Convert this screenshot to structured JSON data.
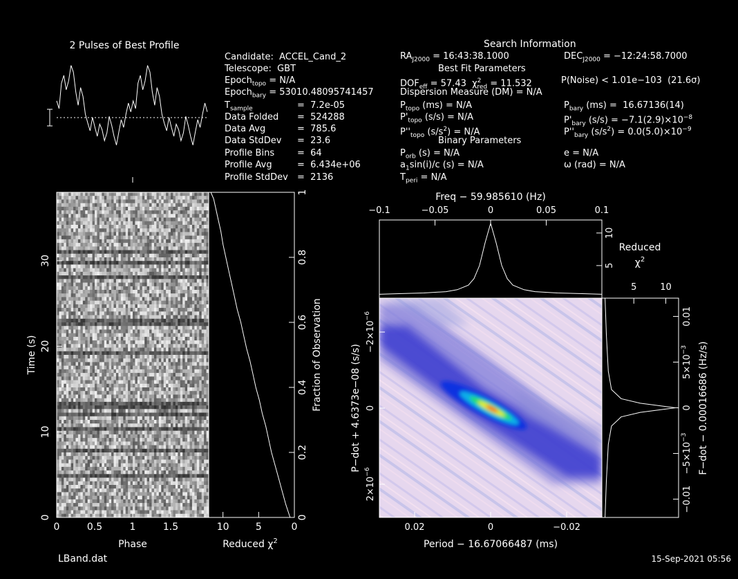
{
  "footer": {
    "file": "LBand.dat",
    "date": "15-Sep-2021 05:56"
  },
  "profile_panel": {
    "title": "2 Pulses of Best Profile"
  },
  "candidate_info": {
    "candidate": "Candidate:  ACCEL_Cand_2",
    "telescope": "Telescope:  GBT",
    "epoch_topo": "Epoch",
    "epoch_topo_sub": "topo",
    "epoch_topo_val": " = N/A",
    "epoch_bary": "Epoch",
    "epoch_bary_sub": "bary",
    "epoch_bary_val": " = 53010.48095741457",
    "tsample_label": "T",
    "tsample_sub": "sample",
    "tsample_val": "=  7.2e-05",
    "data_folded_label": "Data Folded",
    "data_folded_val": "=  524288",
    "data_avg_label": "Data Avg",
    "data_avg_val": "=  785.6",
    "data_std_label": "Data StdDev",
    "data_std_val": "=  23.6",
    "profile_bins_label": "Profile Bins",
    "profile_bins_val": "=  64",
    "profile_avg_label": "Profile Avg",
    "profile_avg_val": "=  6.434e+06",
    "profile_std_label": "Profile StdDev",
    "profile_std_val": "=  2136"
  },
  "search_info": {
    "title": "Search Information",
    "ra": "RA",
    "ra_sub": "J2000",
    "ra_val": " = 16:43:38.1000",
    "dec": "DEC",
    "dec_sub": "J2000",
    "dec_val": " = −12:24:58.7000",
    "best_fit": "Best Fit Parameters",
    "dof": "DOF",
    "dof_sub": "eff",
    "dof_val": " = 57.43  χ",
    "chi_sup": "2",
    "chi_sub": "red",
    "chi_val": " = 11.532",
    "pnoise": "P(Noise) < 1.01e−103  (21.6σ)",
    "dm": "Dispersion Measure (DM) = N/A",
    "ptopo": "P",
    "ptopo_sub": "topo",
    "ptopo_val": " (ms) = N/A",
    "pbary": "P",
    "pbary_sub": "bary",
    "pbary_val": " (ms) =  16.67136(14)",
    "pdtopo": "P'",
    "pdtopo_sub": "topo",
    "pdtopo_val": " (s/s) = N/A",
    "pdbary": "P'",
    "pdbary_sub": "bary",
    "pdbary_val": " (s/s) = −7.1(2.9)×10",
    "pdbary_exp": "−8",
    "pddtopo": "P''",
    "pddtopo_sub": "topo",
    "pddtopo_val": " (s/s",
    "pddtopo_sup": "2",
    "pddtopo_val2": ") = N/A",
    "pddbary": "P''",
    "pddbary_sub": "bary",
    "pddbary_val": " (s/s",
    "pddbary_sup": "2",
    "pddbary_val2": ") = 0.0(5.0)×10",
    "pddbary_exp": "−9",
    "binary": "Binary Parameters",
    "porb": "P",
    "porb_sub": "orb",
    "porb_val": " (s) = N/A",
    "ecc": "e = N/A",
    "asini": "a",
    "asini_sub": "1",
    "asini_val": "sin(i)/c (s) = N/A",
    "omega": "ω (rad) = N/A",
    "tperi": "T",
    "tperi_sub": "peri",
    "tperi_val": " = N/A"
  },
  "axes": {
    "phase_label": "Phase",
    "time_label": "Time (s)",
    "redchi_label": "Reduced χ",
    "redchi_sup": "2",
    "fraction_label": "Fraction of Observation",
    "freq_label": "Freq − 59.985610 (Hz)",
    "period_label": "Period − 16.67066487 (ms)",
    "pdot_label": "P−dot + 4.6373e−08 (s/s)",
    "fdot_label": "F−dot − 0.00016686 (Hz/s)",
    "reduced_label": "Reduced",
    "chi2_label": "χ",
    "chi2_sup": "2",
    "phase_ticks": [
      "0",
      "0.5",
      "1",
      "1.5"
    ],
    "time_ticks": [
      "0",
      "10",
      "20",
      "30"
    ],
    "redchi_ticks": [
      "10",
      "5",
      "0"
    ],
    "fraction_ticks": [
      "0",
      "0.2",
      "0.4",
      "0.6",
      "0.8",
      "1"
    ],
    "freq_ticks": [
      "−0.1",
      "−0.05",
      "0",
      "0.05",
      "0.1"
    ],
    "period_ticks": [
      "0.02",
      "0",
      "−0.02"
    ],
    "pdot_ticks": [
      "2×10",
      "0",
      "−2×10"
    ],
    "pdot_exp": "−6",
    "fdot_ticks": [
      "−0.01",
      "−5×10",
      "0",
      "5×10",
      "0.01"
    ],
    "fdot_exp": "−3",
    "chi_top_ticks": [
      "5",
      "10"
    ],
    "chi_right_ticks": [
      "5",
      "10"
    ]
  },
  "chart_data": [
    {
      "type": "line",
      "name": "profile",
      "title": "2 Pulses of Best Profile",
      "x_range": [
        0,
        2
      ],
      "values": [
        0.62,
        0.55,
        0.78,
        0.85,
        0.72,
        0.8,
        0.94,
        0.88,
        0.7,
        0.58,
        0.74,
        0.66,
        0.5,
        0.42,
        0.35,
        0.47,
        0.38,
        0.3,
        0.41,
        0.36,
        0.26,
        0.33,
        0.48,
        0.4,
        0.3,
        0.22,
        0.34,
        0.45,
        0.38,
        0.5,
        0.6,
        0.52,
        0.62,
        0.55,
        0.78,
        0.85,
        0.72,
        0.8,
        0.94,
        0.88,
        0.7,
        0.58,
        0.74,
        0.66,
        0.5,
        0.42,
        0.35,
        0.47,
        0.38,
        0.3,
        0.41,
        0.36,
        0.26,
        0.33,
        0.48,
        0.4,
        0.3,
        0.22,
        0.34,
        0.45,
        0.38,
        0.5,
        0.6,
        0.52
      ]
    },
    {
      "type": "line",
      "name": "reduced chi2 vs time",
      "xlabel": "Reduced χ²",
      "ylabel": "Fraction of Observation",
      "x_range": [
        12,
        0
      ],
      "y_range": [
        0,
        1
      ],
      "x": [
        0.6,
        1.2,
        1.7,
        2.2,
        2.7,
        3.2,
        3.6,
        4.0,
        4.5,
        4.9,
        5.4,
        5.8,
        6.2,
        6.7,
        7.1,
        7.5,
        8.0,
        8.4,
        8.8,
        9.2,
        9.6,
        10.0,
        10.3,
        10.7,
        11.0,
        11.3,
        11.7
      ],
      "y": [
        0.0,
        0.04,
        0.08,
        0.12,
        0.16,
        0.2,
        0.24,
        0.28,
        0.32,
        0.36,
        0.4,
        0.44,
        0.48,
        0.52,
        0.56,
        0.6,
        0.64,
        0.68,
        0.72,
        0.76,
        0.8,
        0.84,
        0.88,
        0.92,
        0.95,
        0.98,
        1.0
      ]
    },
    {
      "type": "line",
      "name": "reduced chi2 vs freq",
      "xlabel": "Freq − 59.985610 (Hz)",
      "x_range": [
        -0.1,
        0.1
      ],
      "y_range": [
        0,
        12
      ],
      "x": [
        -0.1,
        -0.08,
        -0.06,
        -0.04,
        -0.03,
        -0.02,
        -0.015,
        -0.01,
        -0.005,
        0,
        0.005,
        0.01,
        0.015,
        0.02,
        0.03,
        0.04,
        0.06,
        0.08,
        0.1
      ],
      "y": [
        0.6,
        0.7,
        0.8,
        1.0,
        1.3,
        2.0,
        3.0,
        5.0,
        8.5,
        11.5,
        8.5,
        5.0,
        3.0,
        2.0,
        1.3,
        1.0,
        0.8,
        0.7,
        0.6
      ]
    },
    {
      "type": "line",
      "name": "reduced chi2 vs fdot",
      "xlabel": "F−dot − 0.00016686 (Hz/s)",
      "x_range": [
        -0.012,
        0.012
      ],
      "y_range": [
        0,
        12
      ],
      "x": [
        -0.012,
        -0.008,
        -0.004,
        -0.002,
        -0.001,
        -0.0005,
        0,
        0.0005,
        0.001,
        0.002,
        0.004,
        0.008,
        0.012
      ],
      "y": [
        0.5,
        0.7,
        1.0,
        1.5,
        3.0,
        6.0,
        11.5,
        6.0,
        3.0,
        1.5,
        1.0,
        0.7,
        0.5
      ]
    },
    {
      "type": "heatmap",
      "name": "period-pdot chi2 map",
      "xlabel": "Period − 16.67066487 (ms)",
      "ylabel": "P−dot + 4.6373e−08 (s/s)"
    },
    {
      "type": "heatmap",
      "name": "time-phase greyscale",
      "xlabel": "Phase",
      "ylabel": "Time (s)",
      "x_range": [
        0,
        2
      ],
      "y_range": [
        0,
        38
      ]
    }
  ]
}
